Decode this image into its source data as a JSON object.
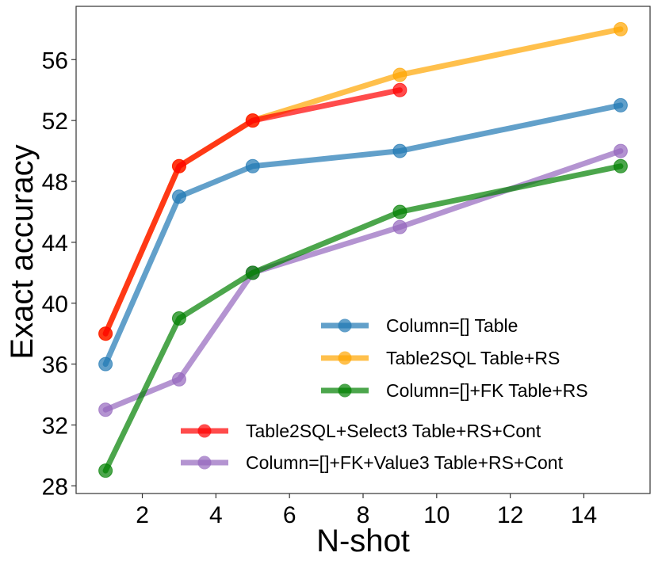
{
  "chart_data": {
    "type": "line",
    "title": "",
    "xlabel": "N-shot",
    "ylabel": "Exact accuracy",
    "xlim": [
      0.2,
      15.8
    ],
    "ylim": [
      27.5,
      59.5
    ],
    "xticks": [
      2,
      4,
      6,
      8,
      10,
      12,
      14
    ],
    "yticks": [
      28,
      32,
      36,
      40,
      44,
      48,
      52,
      56
    ],
    "grid": false,
    "legend_position": "lower-right",
    "series": [
      {
        "name": "Column=[] Table",
        "color": "#1f77b4",
        "x": [
          1,
          3,
          5,
          9,
          15
        ],
        "values": [
          36,
          47,
          49,
          50,
          53
        ]
      },
      {
        "name": "Table2SQL Table+RS",
        "color": "#ffa500",
        "x": [
          1,
          3,
          5,
          9,
          15
        ],
        "values": [
          38,
          49,
          52,
          55,
          58
        ]
      },
      {
        "name": "Column=[]+FK Table+RS",
        "color": "#008000",
        "x": [
          1,
          3,
          5,
          9,
          15
        ],
        "values": [
          29,
          39,
          42,
          46,
          49
        ]
      },
      {
        "name": "Table2SQL+Select3 Table+RS+Cont",
        "color": "#ff0000",
        "x": [
          1,
          3,
          5,
          9
        ],
        "values": [
          38,
          49,
          52,
          54
        ]
      },
      {
        "name": "Column=[]+FK+Value3 Table+RS+Cont",
        "color": "#9467bd",
        "x": [
          1,
          3,
          5,
          9,
          15
        ],
        "values": [
          33,
          35,
          42,
          45,
          50
        ]
      }
    ],
    "draw_order": [
      0,
      4,
      2,
      1,
      3
    ]
  }
}
